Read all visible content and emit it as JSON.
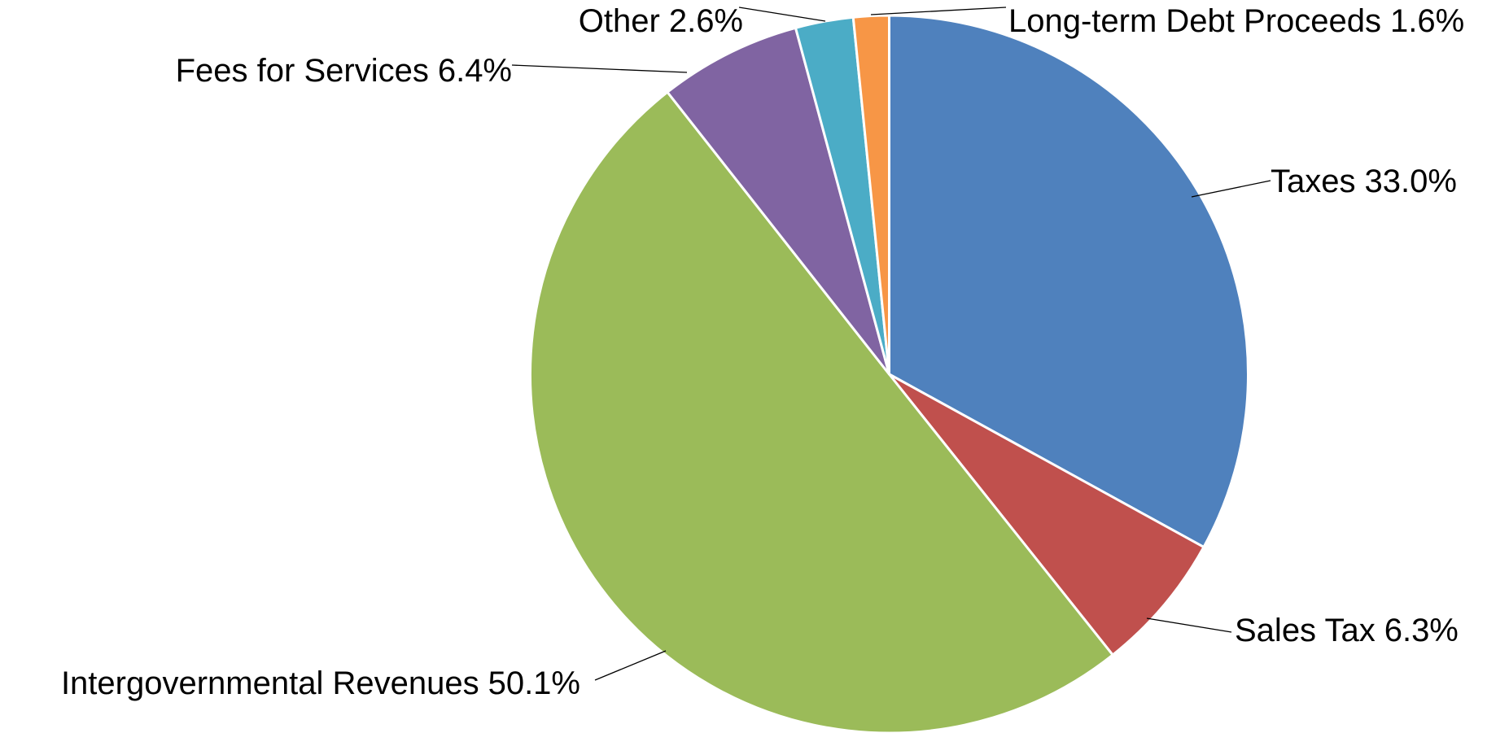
{
  "chart_data": {
    "type": "pie",
    "categories": [
      "Taxes",
      "Sales Tax",
      "Intergovernmental Revenues",
      "Fees for Services",
      "Other",
      "Long-term Debt Proceeds"
    ],
    "values": [
      33.0,
      6.3,
      50.1,
      6.4,
      2.6,
      1.6
    ],
    "value_labels": [
      "33.0%",
      "6.3%",
      "50.1%",
      "6.4%",
      "2.6%",
      "1.6%"
    ],
    "colors": [
      "#4f81bd",
      "#c0504d",
      "#9bbb59",
      "#8064a2",
      "#4bacc6",
      "#f79646"
    ]
  }
}
